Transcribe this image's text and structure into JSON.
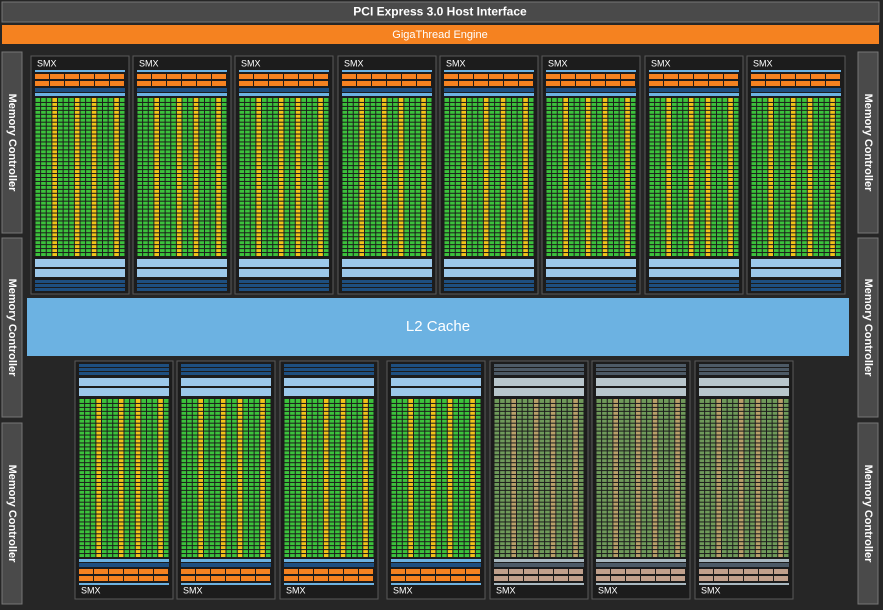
{
  "header": {
    "host_interface": "PCI Express 3.0 Host Interface",
    "gigathread": "GigaThread Engine"
  },
  "memory_controllers": [
    "Memory Controller",
    "Memory Controller",
    "Memory Controller",
    "Memory Controller",
    "Memory Controller",
    "Memory Controller"
  ],
  "smx_top": [
    "SMX",
    "SMX",
    "SMX",
    "SMX",
    "SMX",
    "SMX",
    "SMX",
    "SMX"
  ],
  "l2_cache": "L2 Cache",
  "smx_bottom": [
    "SMX",
    "SMX",
    "SMX",
    "SMX",
    "SMX",
    "SMX",
    "SMX"
  ]
}
